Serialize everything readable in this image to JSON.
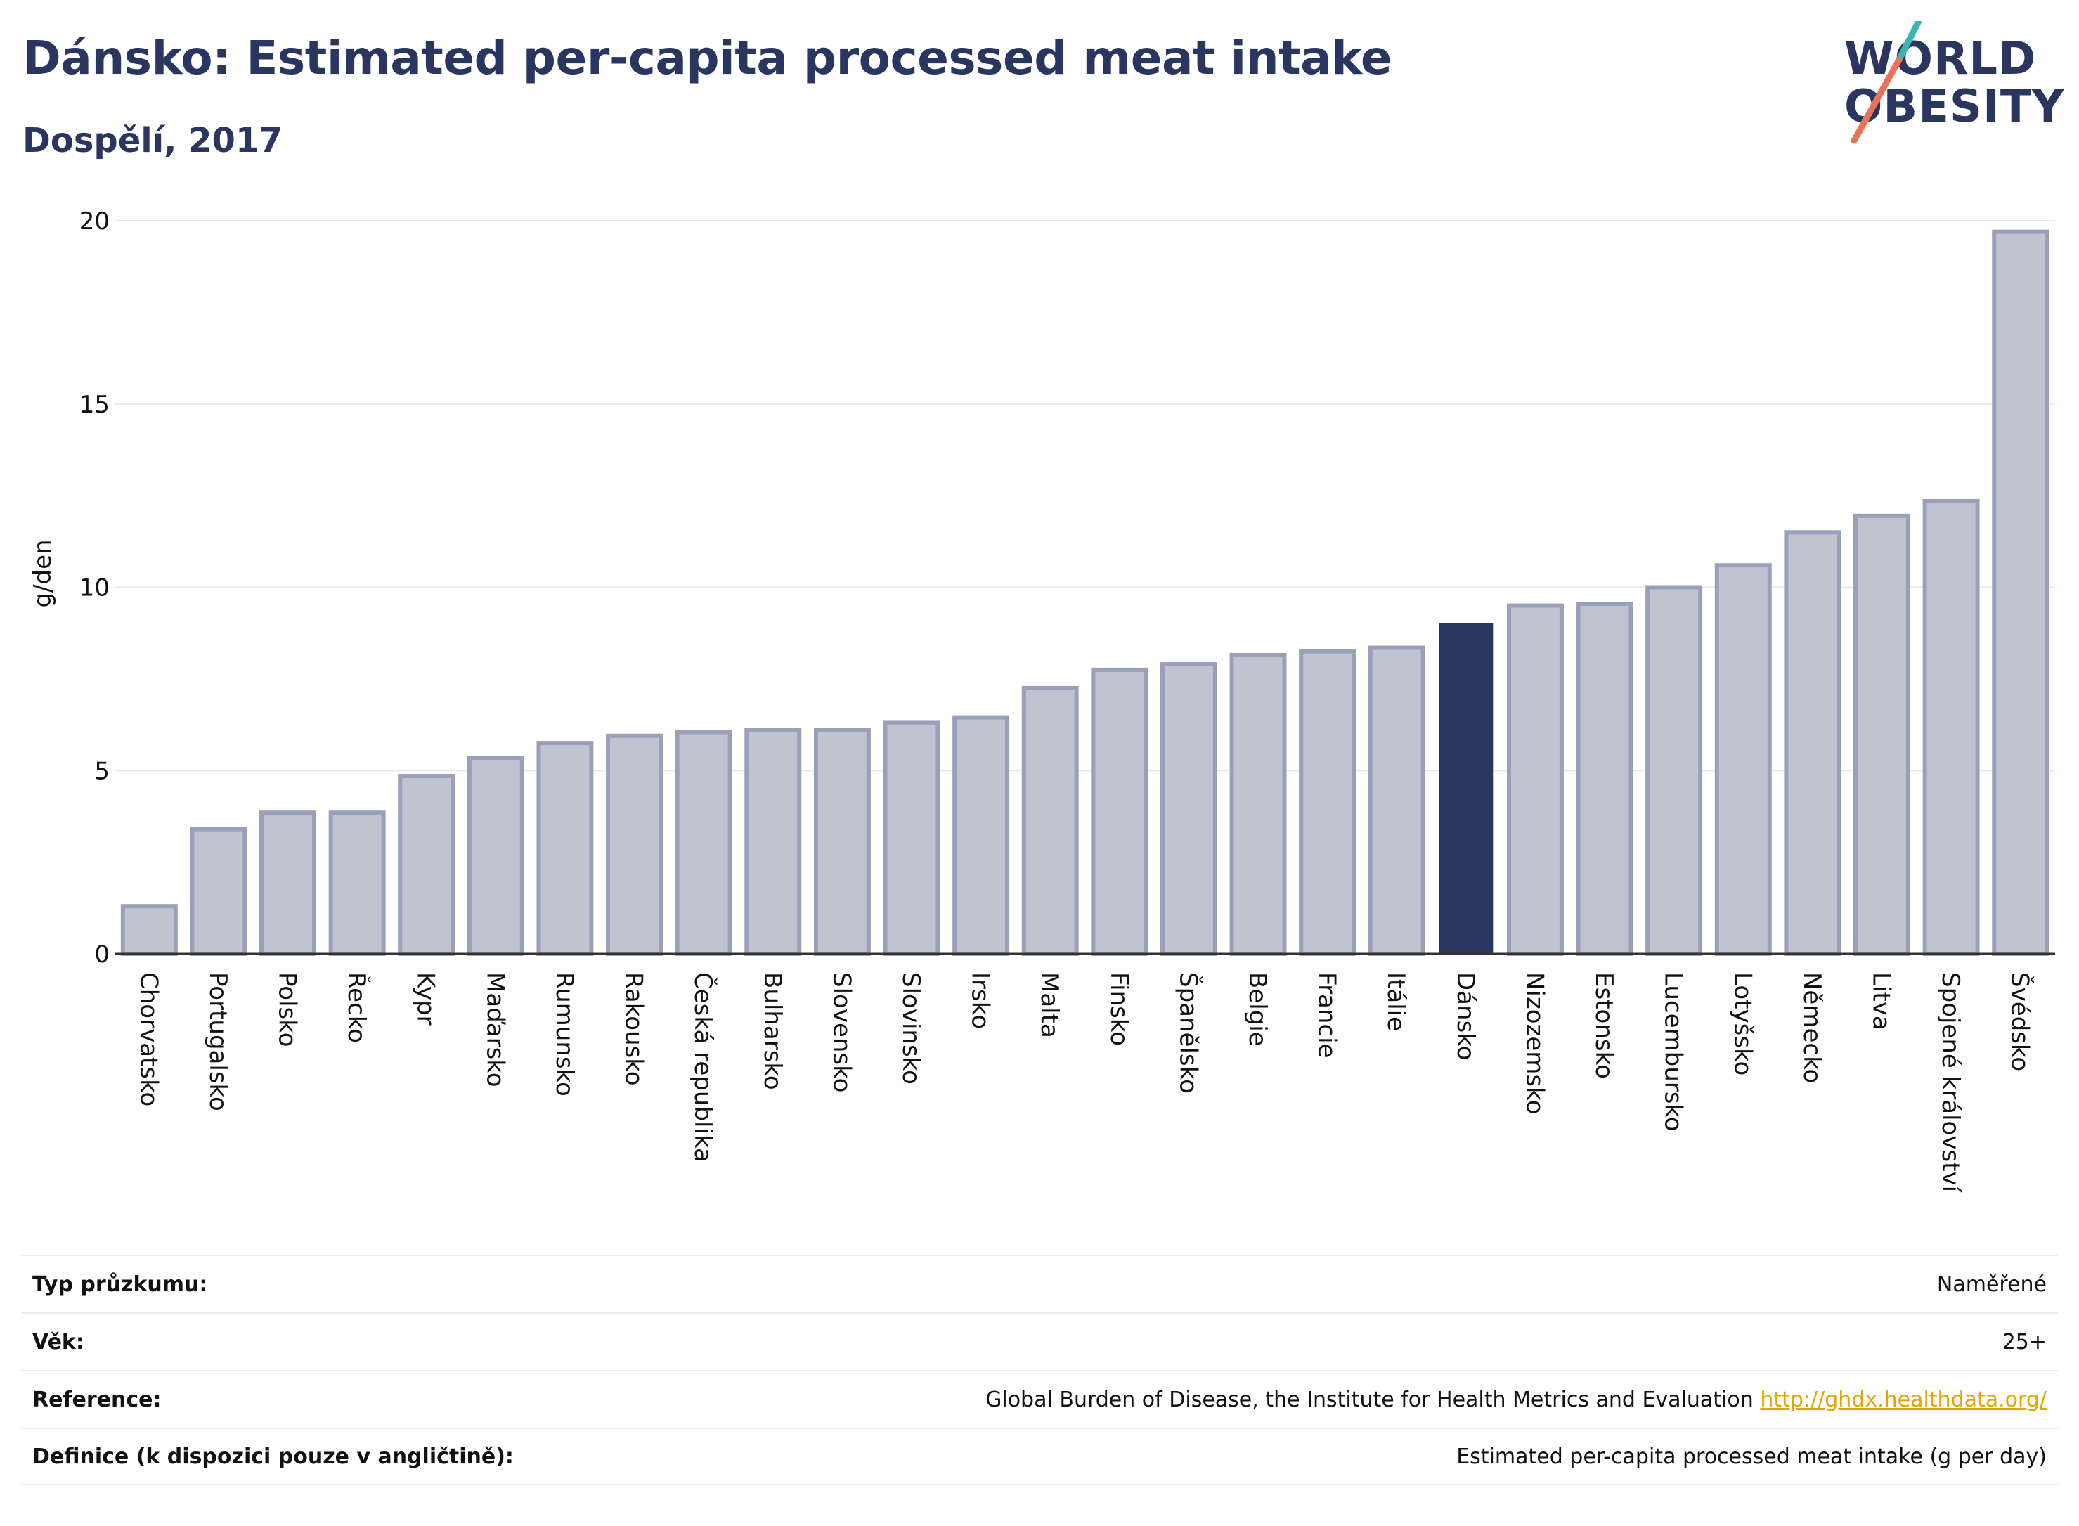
{
  "header": {
    "title": "Dánsko: Estimated per-capita processed meat intake",
    "subtitle": "Dospělí, 2017"
  },
  "logo": {
    "line1": "WORLD",
    "line2": "OBESITY"
  },
  "colors": {
    "bar_fill": "#c0c3d0",
    "bar_stroke": "#9aa0b8",
    "highlight": "#2a3560",
    "grid": "#e6e8ec",
    "text": "#111111",
    "title": "#2a3560",
    "link": "#e0a800",
    "logo_teal": "#3cb4b4",
    "logo_coral": "#e8735a"
  },
  "chart_data": {
    "type": "bar",
    "title": "Dánsko: Estimated per-capita processed meat intake",
    "subtitle": "Dospělí, 2017",
    "ylabel": "g/den",
    "xlabel": "",
    "ylim": [
      0,
      20
    ],
    "yticks": [
      0,
      5,
      10,
      15,
      20
    ],
    "grid": true,
    "highlight": "Dánsko",
    "categories": [
      "Chorvatsko",
      "Portugalsko",
      "Polsko",
      "Řecko",
      "Kypr",
      "Maďarsko",
      "Rumunsko",
      "Rakousko",
      "Česká republika",
      "Bulharsko",
      "Slovensko",
      "Slovinsko",
      "Irsko",
      "Malta",
      "Finsko",
      "Španělsko",
      "Belgie",
      "Francie",
      "Itálie",
      "Dánsko",
      "Nizozemsko",
      "Estonsko",
      "Lucembursko",
      "Lotyšsko",
      "Německo",
      "Litva",
      "Spojené království",
      "Švédsko"
    ],
    "values": [
      1.3,
      3.4,
      3.85,
      3.85,
      4.85,
      5.35,
      5.75,
      5.95,
      6.05,
      6.1,
      6.1,
      6.3,
      6.45,
      7.25,
      7.75,
      7.9,
      8.15,
      8.25,
      8.35,
      9.0,
      9.5,
      9.55,
      10.0,
      10.6,
      11.5,
      11.95,
      12.35,
      19.7
    ]
  },
  "info": [
    {
      "label": "Typ průzkumu:",
      "value": "Naměřené"
    },
    {
      "label": "Věk:",
      "value": "25+"
    },
    {
      "label": "Reference:",
      "value": "Global Burden of Disease, the Institute for Health Metrics and Evaluation",
      "link": "http://ghdx.healthdata.org/"
    },
    {
      "label": "Definice (k dispozici pouze v angličtině):",
      "value": "Estimated per-capita processed meat intake (g per day)"
    }
  ]
}
